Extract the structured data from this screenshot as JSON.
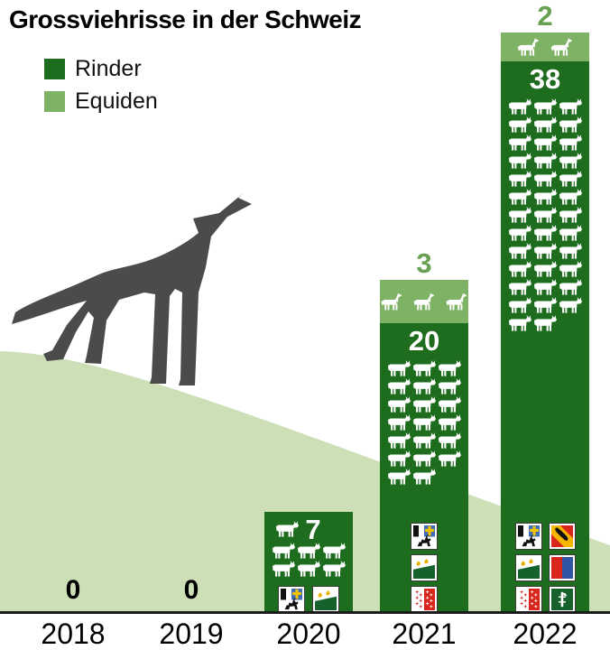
{
  "title": "Grossviehrisse in der Schweiz",
  "legend": [
    {
      "label": "Rinder",
      "color": "#1e6d1f"
    },
    {
      "label": "Equiden",
      "color": "#7eb264"
    }
  ],
  "chart_data": {
    "type": "bar",
    "title": "Grossviehrisse in der Schweiz",
    "categories": [
      "2018",
      "2019",
      "2020",
      "2021",
      "2022"
    ],
    "series": [
      {
        "name": "Rinder",
        "color": "#1e6d1f",
        "values": [
          0,
          0,
          7,
          20,
          38
        ]
      },
      {
        "name": "Equiden",
        "color": "#7eb264",
        "values": [
          0,
          0,
          0,
          3,
          2
        ]
      }
    ],
    "zero_labels": [
      "0",
      "0"
    ],
    "bars": [
      {
        "year": "2020",
        "rinder": 7,
        "equiden": 0,
        "rinder_label": "7",
        "equiden_label": "",
        "inline_label": true,
        "cantons": [
          "GR",
          "TG"
        ],
        "flag_layout": "row"
      },
      {
        "year": "2021",
        "rinder": 20,
        "equiden": 3,
        "rinder_label": "20",
        "equiden_label": "3",
        "inline_label": false,
        "cantons": [
          "GR",
          "TG",
          "VS"
        ],
        "flag_layout": "column"
      },
      {
        "year": "2022",
        "rinder": 38,
        "equiden": 2,
        "rinder_label": "38",
        "equiden_label": "2",
        "inline_label": false,
        "cantons": [
          "GR",
          "BE",
          "TG",
          "TI",
          "VS",
          "SG"
        ],
        "flag_layout": "grid2"
      }
    ],
    "canton_names": {
      "GR": "Graubünden",
      "BE": "Bern",
      "TG": "Thurgau",
      "TI": "Tessin",
      "VS": "Wallis",
      "SG": "St. Gallen"
    },
    "icons": {
      "rinder": "cow-icon",
      "equiden": "horse-icon",
      "scene": [
        "wolf-icon",
        "hill-shape"
      ]
    },
    "colors": {
      "rinder": "#1e6d1f",
      "equiden": "#7eb264",
      "hill": "#cddfb6",
      "wolf": "#4b4b4b",
      "number_above": "#69a152",
      "axis": "#1c1c1c"
    },
    "legend_position": "top-left",
    "grid": false
  }
}
